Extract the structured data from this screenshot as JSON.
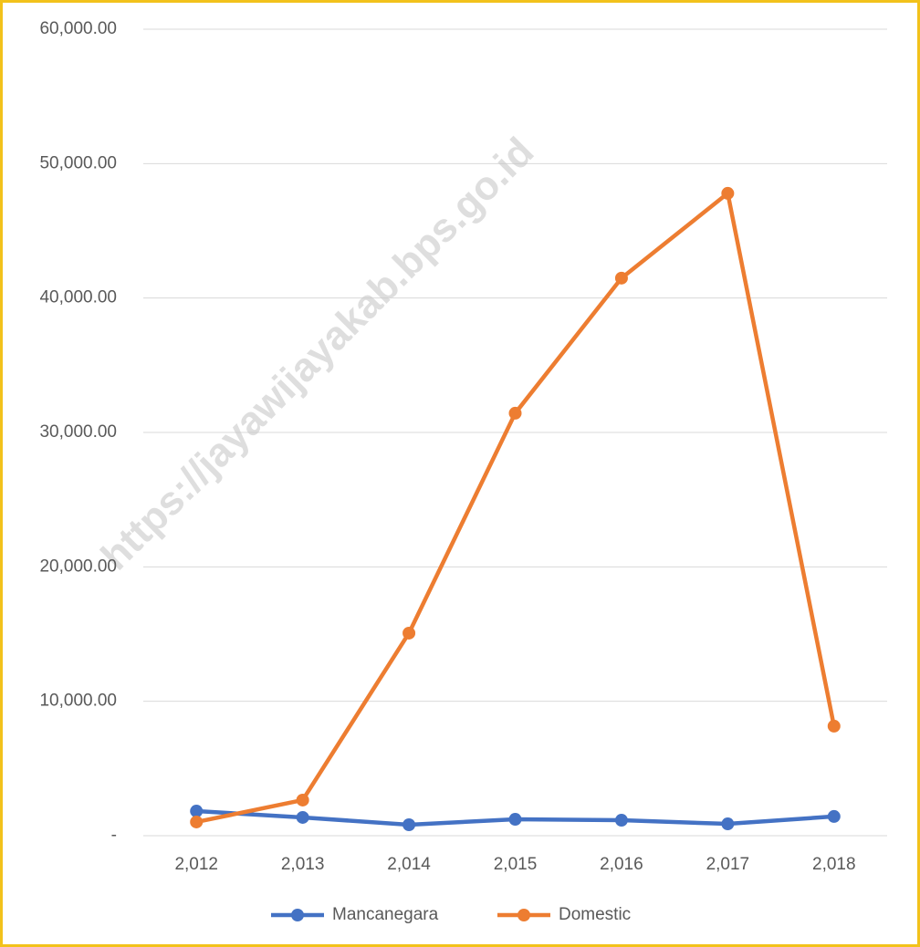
{
  "chart_data": {
    "type": "line",
    "watermark": "https://jayawijayakab.bps.go.id",
    "categories": [
      "2,012",
      "2,013",
      "2,014",
      "2,015",
      "2,016",
      "2,017",
      "2,018"
    ],
    "series": [
      {
        "name": "Mancanegara",
        "color": "#4472c4",
        "values": [
          1830,
          1360,
          815,
          1220,
          1150,
          880,
          1430
        ]
      },
      {
        "name": "Domestic",
        "color": "#ed7d31",
        "values": [
          1020,
          2650,
          15070,
          31430,
          41480,
          47790,
          8150
        ]
      }
    ],
    "ylim": [
      0,
      60000
    ],
    "yticks": [
      {
        "value": 0,
        "label": "-"
      },
      {
        "value": 10000,
        "label": "10,000.00"
      },
      {
        "value": 20000,
        "label": "20,000.00"
      },
      {
        "value": 30000,
        "label": "30,000.00"
      },
      {
        "value": 40000,
        "label": "40,000.00"
      },
      {
        "value": 50000,
        "label": "50,000.00"
      },
      {
        "value": 60000,
        "label": "60,000.00"
      }
    ],
    "grid": true,
    "legend": "bottom"
  }
}
